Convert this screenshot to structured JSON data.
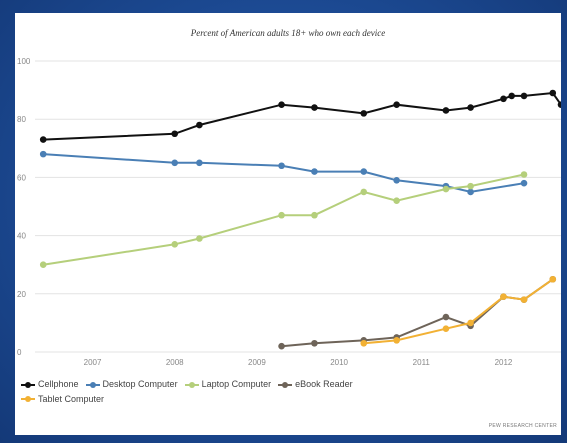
{
  "chart_data": {
    "type": "line",
    "title": "Percent of American adults 18+ who own each device",
    "xlabel": "",
    "ylabel": "",
    "xlim": [
      2006.3,
      2012.7
    ],
    "ylim": [
      0,
      100
    ],
    "x_ticks": [
      2007,
      2008,
      2009,
      2010,
      2011,
      2012
    ],
    "x_tick_labels": [
      "2007",
      "2008",
      "2009",
      "2010",
      "2011",
      "2012"
    ],
    "y_ticks": [
      0,
      20,
      40,
      60,
      80,
      100
    ],
    "y_tick_labels": [
      "0",
      "20",
      "40",
      "60",
      "80",
      "100"
    ],
    "grid": "horizontal",
    "legend": "bottom-left",
    "series": [
      {
        "name": "Cellphone",
        "color": "#111111",
        "points": [
          [
            2006.4,
            73
          ],
          [
            2008.0,
            75
          ],
          [
            2008.3,
            78
          ],
          [
            2009.3,
            85
          ],
          [
            2009.7,
            84
          ],
          [
            2010.3,
            82
          ],
          [
            2010.7,
            85
          ],
          [
            2011.3,
            83
          ],
          [
            2011.6,
            84
          ],
          [
            2012.0,
            87
          ],
          [
            2012.1,
            88
          ],
          [
            2012.25,
            88
          ],
          [
            2012.6,
            89
          ],
          [
            2012.7,
            85
          ]
        ]
      },
      {
        "name": "Desktop Computer",
        "color": "#4a7fb5",
        "points": [
          [
            2006.4,
            68
          ],
          [
            2008.0,
            65
          ],
          [
            2008.3,
            65
          ],
          [
            2009.3,
            64
          ],
          [
            2009.7,
            62
          ],
          [
            2010.3,
            62
          ],
          [
            2010.7,
            59
          ],
          [
            2011.3,
            57
          ],
          [
            2011.6,
            55
          ],
          [
            2012.25,
            58
          ]
        ]
      },
      {
        "name": "Laptop Computer",
        "color": "#b5cf7b",
        "points": [
          [
            2006.4,
            30
          ],
          [
            2008.0,
            37
          ],
          [
            2008.3,
            39
          ],
          [
            2009.3,
            47
          ],
          [
            2009.7,
            47
          ],
          [
            2010.3,
            55
          ],
          [
            2010.7,
            52
          ],
          [
            2011.3,
            56
          ],
          [
            2011.6,
            57
          ],
          [
            2012.25,
            61
          ]
        ]
      },
      {
        "name": "eBook Reader",
        "color": "#6e6459",
        "points": [
          [
            2009.3,
            2
          ],
          [
            2009.7,
            3
          ],
          [
            2010.3,
            4
          ],
          [
            2010.7,
            5
          ],
          [
            2011.3,
            12
          ],
          [
            2011.6,
            9
          ],
          [
            2012.0,
            19
          ],
          [
            2012.25,
            18
          ],
          [
            2012.6,
            25
          ]
        ]
      },
      {
        "name": "Tablet Computer",
        "color": "#f2b134",
        "points": [
          [
            2010.3,
            3
          ],
          [
            2010.7,
            4
          ],
          [
            2011.3,
            8
          ],
          [
            2011.6,
            10
          ],
          [
            2012.0,
            19
          ],
          [
            2012.25,
            18
          ],
          [
            2012.6,
            25
          ]
        ]
      }
    ],
    "source": "PEW RESEARCH CENTER"
  }
}
